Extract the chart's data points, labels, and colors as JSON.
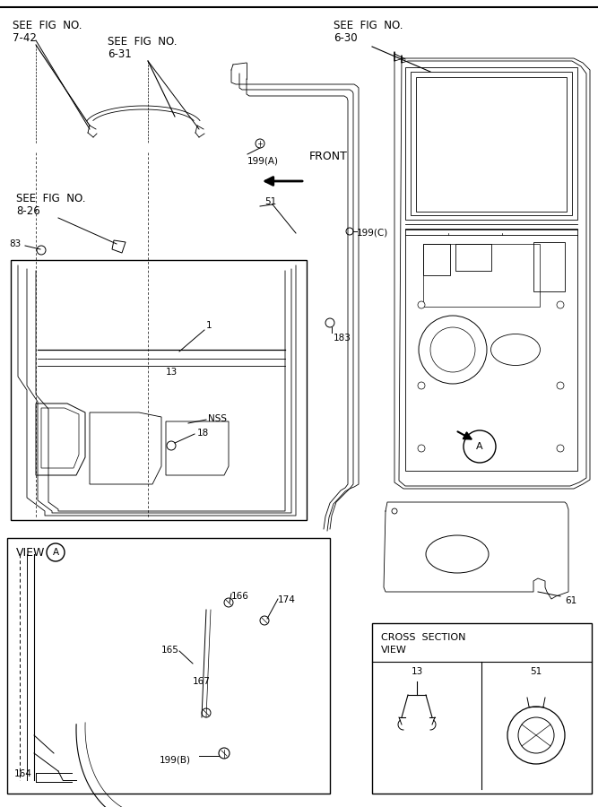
{
  "bg_color": "#ffffff",
  "line_color": "#000000",
  "fig_width": 6.67,
  "fig_height": 9.0,
  "texts": {
    "see_742_line1": "SEE  FIG  NO.",
    "see_742_line2": "7-42",
    "see_631_line1": "SEE  FIG  NO.",
    "see_631_line2": "6-31",
    "see_630_line1": "SEE  FIG  NO.",
    "see_630_line2": "6-30",
    "see_826_line1": "SEE  FIG  NO.",
    "see_826_line2": "8-26",
    "front": "FRONT",
    "nss": "NSS",
    "view_a": "VIEW",
    "cross_title": "CROSS  SECTION",
    "cross_view": "VIEW"
  },
  "part_labels": [
    "83",
    "1",
    "13",
    "18",
    "51",
    "183",
    "199(A)",
    "199(C)",
    "61",
    "164",
    "165",
    "166",
    "167",
    "174",
    "199(B)",
    "NSS"
  ]
}
